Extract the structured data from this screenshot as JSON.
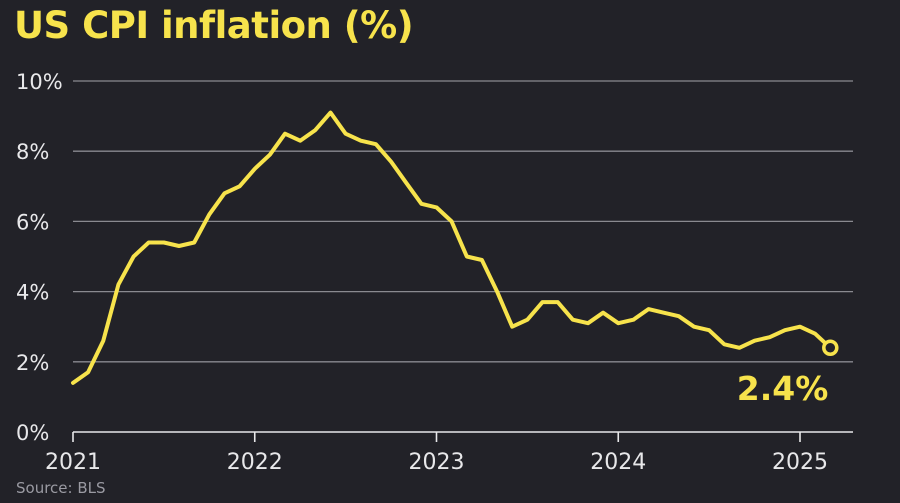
{
  "title": "US CPI inflation (%)",
  "source": "Source: BLS",
  "colors": {
    "background": "#222228",
    "line": "#f7e34c",
    "grid": "#8a8a90",
    "text": "#e8e8ea"
  },
  "chart_data": {
    "type": "line",
    "title": "US CPI inflation (%)",
    "xlabel": "",
    "ylabel": "",
    "ylim": [
      0,
      10
    ],
    "xlim": [
      "2021-01",
      "2025-03"
    ],
    "grid": true,
    "y_ticks": [
      "0%",
      "2%",
      "4%",
      "6%",
      "8%",
      "10%"
    ],
    "x_ticks": [
      "2021",
      "2022",
      "2023",
      "2024",
      "2025"
    ],
    "series": [
      {
        "x": [
          "2021-01",
          "2021-02",
          "2021-03",
          "2021-04",
          "2021-05",
          "2021-06",
          "2021-07",
          "2021-08",
          "2021-09",
          "2021-10",
          "2021-11",
          "2021-12",
          "2022-01",
          "2022-02",
          "2022-03",
          "2022-04",
          "2022-05",
          "2022-06",
          "2022-07",
          "2022-08",
          "2022-09",
          "2022-10",
          "2022-11",
          "2022-12",
          "2023-01",
          "2023-02",
          "2023-03",
          "2023-04",
          "2023-05",
          "2023-06",
          "2023-07",
          "2023-08",
          "2023-09",
          "2023-10",
          "2023-11",
          "2023-12",
          "2024-01",
          "2024-02",
          "2024-03",
          "2024-04",
          "2024-05",
          "2024-06",
          "2024-07",
          "2024-08",
          "2024-09",
          "2024-10",
          "2024-11",
          "2024-12",
          "2025-01",
          "2025-02",
          "2025-03"
        ],
        "values": [
          1.4,
          1.7,
          2.6,
          4.2,
          5.0,
          5.4,
          5.4,
          5.3,
          5.4,
          6.2,
          6.8,
          7.0,
          7.5,
          7.9,
          8.5,
          8.3,
          8.6,
          9.1,
          8.5,
          8.3,
          8.2,
          7.7,
          7.1,
          6.5,
          6.4,
          6.0,
          5.0,
          4.9,
          4.0,
          3.0,
          3.2,
          3.7,
          3.7,
          3.2,
          3.1,
          3.4,
          3.1,
          3.2,
          3.5,
          3.4,
          3.3,
          3.0,
          2.9,
          2.5,
          2.4,
          2.6,
          2.7,
          2.9,
          3.0,
          2.8,
          2.4
        ]
      }
    ],
    "annotations": [
      {
        "text": "2.4%"
      }
    ]
  }
}
